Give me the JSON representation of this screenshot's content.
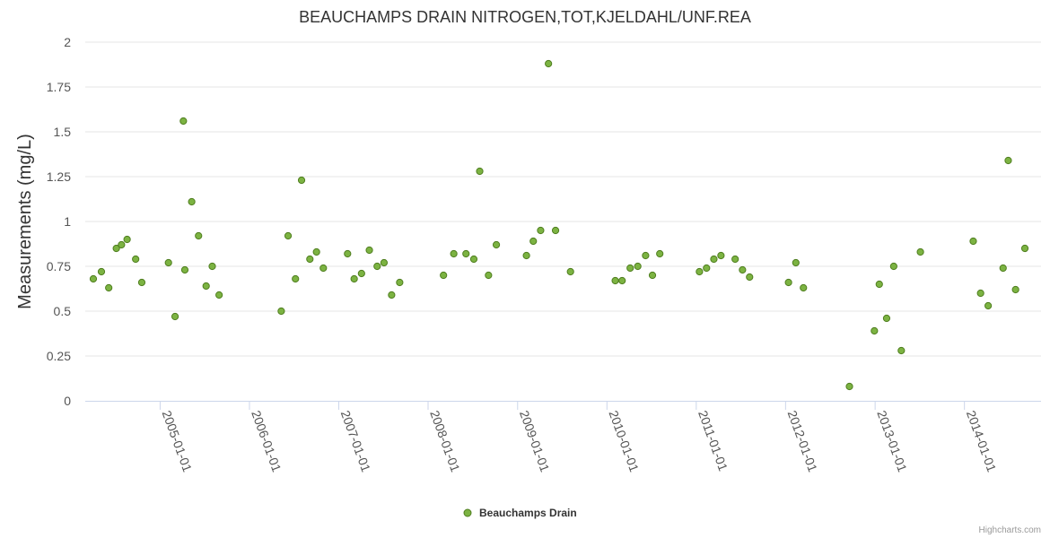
{
  "chart_data": {
    "type": "scatter",
    "title": "BEAUCHAMPS DRAIN NITROGEN,TOT,KJELDAHL/UNF.REA",
    "xlabel": "",
    "ylabel": "Measurements (mg/L)",
    "ylim": [
      0,
      2
    ],
    "yticks": [
      "0",
      "0.25",
      "0.5",
      "0.75",
      "1",
      "1.25",
      "1.5",
      "1.75",
      "2"
    ],
    "xlim": [
      "2004-03-01",
      "2014-11-10"
    ],
    "xticks": [
      "2005-01-01",
      "2006-01-01",
      "2007-01-01",
      "2008-01-01",
      "2009-01-01",
      "2010-01-01",
      "2011-01-01",
      "2012-01-01",
      "2013-01-01",
      "2014-01-01"
    ],
    "series": [
      {
        "name": "Beauchamps Drain",
        "color": "#7cb342",
        "points": [
          [
            "2004-04-03",
            0.68
          ],
          [
            "2004-05-06",
            0.72
          ],
          [
            "2004-06-05",
            0.63
          ],
          [
            "2004-07-06",
            0.85
          ],
          [
            "2004-07-27",
            0.87
          ],
          [
            "2004-08-19",
            0.9
          ],
          [
            "2004-09-23",
            0.79
          ],
          [
            "2004-10-18",
            0.66
          ],
          [
            "2005-02-04",
            0.77
          ],
          [
            "2005-03-03",
            0.47
          ],
          [
            "2005-04-06",
            1.56
          ],
          [
            "2005-04-12",
            0.73
          ],
          [
            "2005-05-10",
            1.11
          ],
          [
            "2005-06-07",
            0.92
          ],
          [
            "2005-07-08",
            0.64
          ],
          [
            "2005-08-02",
            0.75
          ],
          [
            "2005-08-30",
            0.59
          ],
          [
            "2006-05-11",
            0.5
          ],
          [
            "2006-06-08",
            0.92
          ],
          [
            "2006-07-08",
            0.68
          ],
          [
            "2006-08-02",
            1.23
          ],
          [
            "2006-09-05",
            0.79
          ],
          [
            "2006-10-02",
            0.83
          ],
          [
            "2006-10-30",
            0.74
          ],
          [
            "2007-02-06",
            0.82
          ],
          [
            "2007-03-05",
            0.68
          ],
          [
            "2007-04-04",
            0.71
          ],
          [
            "2007-05-06",
            0.84
          ],
          [
            "2007-06-07",
            0.75
          ],
          [
            "2007-07-05",
            0.77
          ],
          [
            "2007-08-05",
            0.59
          ],
          [
            "2007-09-07",
            0.66
          ],
          [
            "2008-03-04",
            0.7
          ],
          [
            "2008-04-15",
            0.82
          ],
          [
            "2008-06-04",
            0.82
          ],
          [
            "2008-07-06",
            0.79
          ],
          [
            "2008-07-30",
            1.28
          ],
          [
            "2008-09-04",
            0.7
          ],
          [
            "2008-10-06",
            0.87
          ],
          [
            "2009-02-06",
            0.81
          ],
          [
            "2009-03-06",
            0.89
          ],
          [
            "2009-04-05",
            0.95
          ],
          [
            "2009-05-07",
            1.88
          ],
          [
            "2009-06-05",
            0.95
          ],
          [
            "2009-08-05",
            0.72
          ],
          [
            "2010-02-04",
            0.67
          ],
          [
            "2010-03-04",
            0.67
          ],
          [
            "2010-04-06",
            0.74
          ],
          [
            "2010-05-07",
            0.75
          ],
          [
            "2010-06-08",
            0.81
          ],
          [
            "2010-07-06",
            0.7
          ],
          [
            "2010-08-05",
            0.82
          ],
          [
            "2011-01-14",
            0.72
          ],
          [
            "2011-02-12",
            0.74
          ],
          [
            "2011-03-14",
            0.79
          ],
          [
            "2011-04-12",
            0.81
          ],
          [
            "2011-06-09",
            0.79
          ],
          [
            "2011-07-09",
            0.73
          ],
          [
            "2011-08-07",
            0.69
          ],
          [
            "2012-01-13",
            0.66
          ],
          [
            "2012-02-12",
            0.77
          ],
          [
            "2012-03-14",
            0.63
          ],
          [
            "2012-09-18",
            0.08
          ],
          [
            "2012-12-29",
            0.39
          ],
          [
            "2013-01-18",
            0.65
          ],
          [
            "2013-02-17",
            0.46
          ],
          [
            "2013-03-18",
            0.75
          ],
          [
            "2013-04-18",
            0.28
          ],
          [
            "2013-07-05",
            0.83
          ],
          [
            "2014-02-06",
            0.89
          ],
          [
            "2014-03-08",
            0.6
          ],
          [
            "2014-04-08",
            0.53
          ],
          [
            "2014-06-08",
            0.74
          ],
          [
            "2014-06-29",
            1.34
          ],
          [
            "2014-07-29",
            0.62
          ],
          [
            "2014-09-05",
            0.85
          ]
        ]
      }
    ],
    "legend": {
      "position": "bottom-center",
      "label": "Beauchamps Drain"
    },
    "grid": true
  },
  "credits": "Highcharts.com",
  "colors": {
    "marker_fill": "#7cb342",
    "marker_stroke": "#4e7d1e",
    "grid": "#e6e6e6",
    "axis": "#ccd6eb"
  }
}
